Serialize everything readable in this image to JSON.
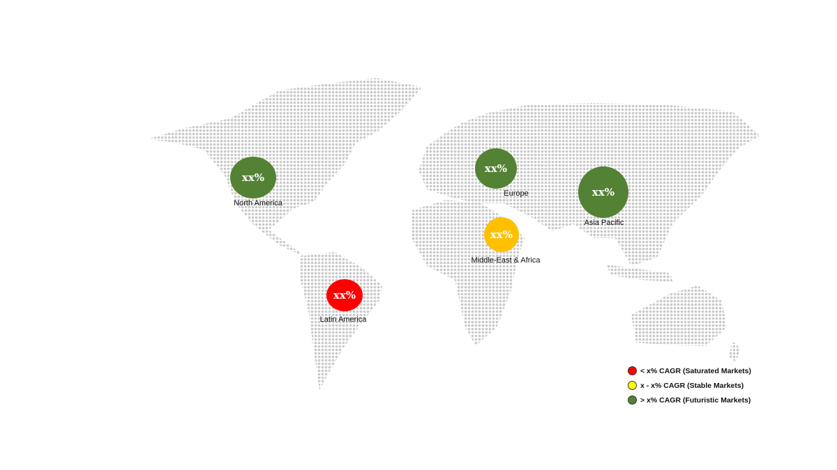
{
  "regions": [
    {
      "name": "North America",
      "value": "xx%",
      "color": "#548235"
    },
    {
      "name": "Europe",
      "value": "xx%",
      "color": "#548235"
    },
    {
      "name": "Asia Pacific",
      "value": "xx%",
      "color": "#548235"
    },
    {
      "name": "Middle-East & Africa",
      "value": "xx%",
      "color": "#FFC000"
    },
    {
      "name": "Latin America",
      "value": "xx%",
      "color": "#FF0000"
    }
  ],
  "legend": [
    {
      "label": "< x% CAGR (Saturated Markets)",
      "color": "#FF0000"
    },
    {
      "label": "x - x% CAGR (Stable Markets)",
      "color": "#FFFF00"
    },
    {
      "label": "> x% CAGR (Futuristic Markets)",
      "color": "#548235"
    }
  ],
  "map_dot_color": "#c8c8c8"
}
